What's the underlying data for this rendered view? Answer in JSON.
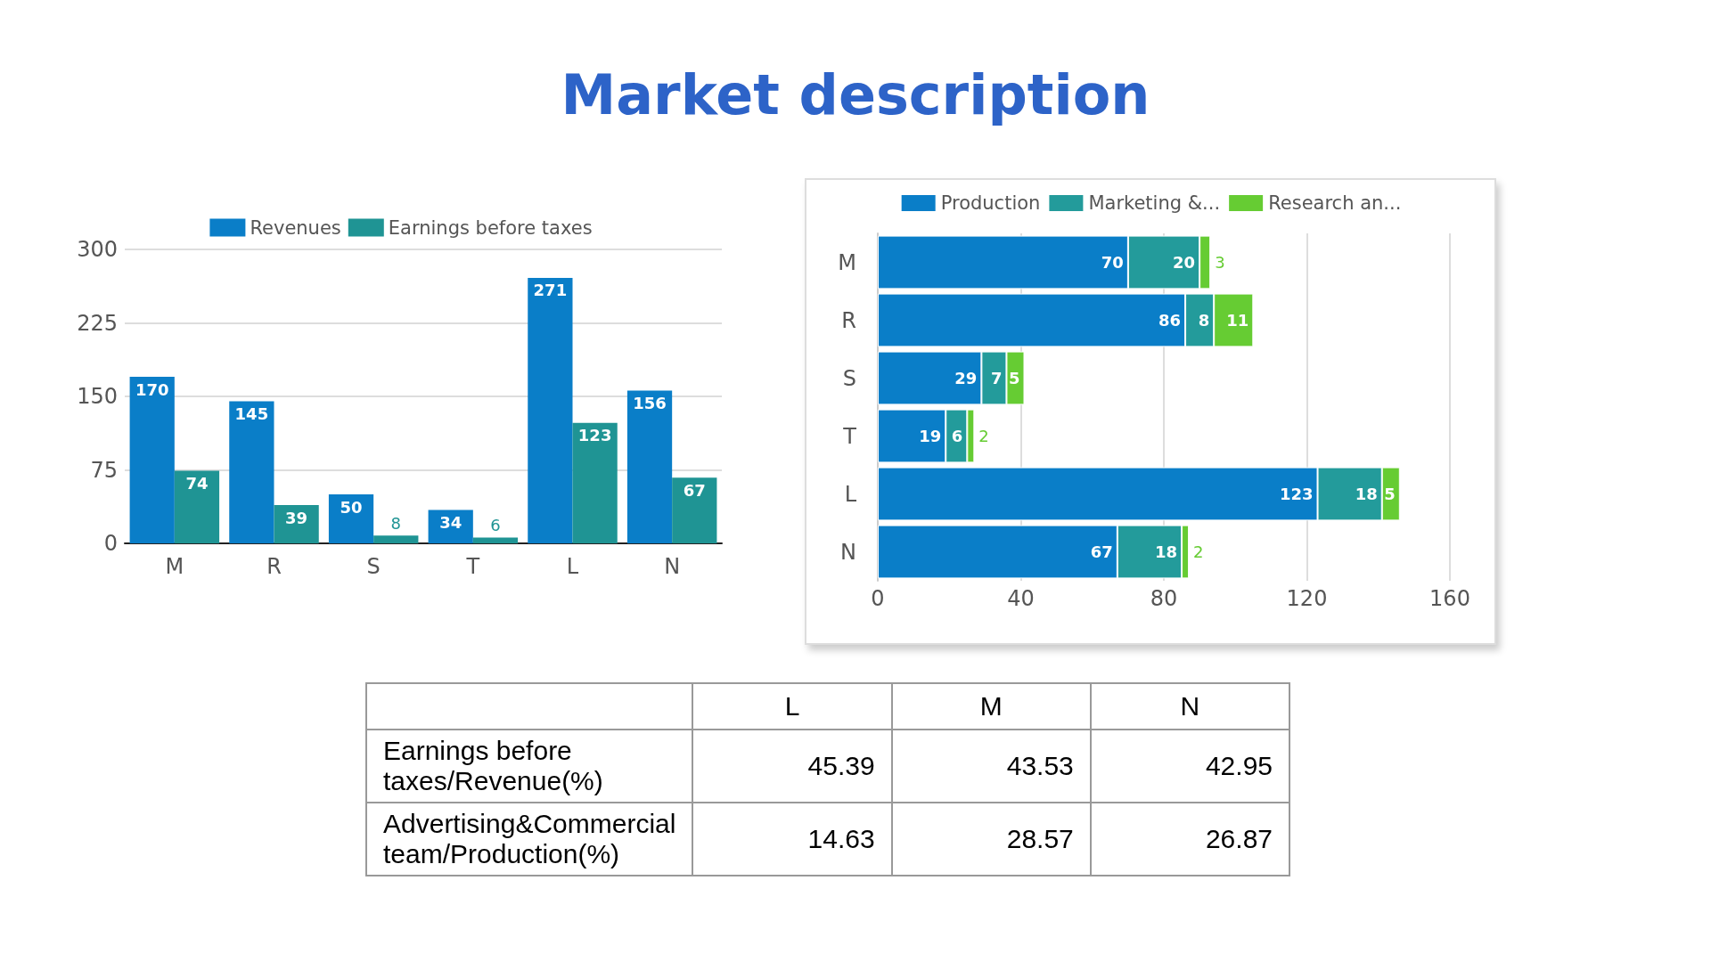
{
  "chart_data": [
    {
      "type": "bar",
      "title": "Market description",
      "categories": [
        "M",
        "R",
        "S",
        "T",
        "L",
        "N"
      ],
      "series": [
        {
          "name": "Revenues",
          "color": "#0a7ec8",
          "values": [
            170,
            145,
            50,
            34,
            271,
            156
          ]
        },
        {
          "name": "Earnings before taxes",
          "color": "#1f9494",
          "values": [
            74,
            39,
            8,
            6,
            123,
            67
          ]
        }
      ],
      "ylim": [
        0,
        300
      ],
      "yticks": [
        0,
        75,
        150,
        225,
        300
      ],
      "grid": "y",
      "legend": "top",
      "data_labels": true
    },
    {
      "type": "bar",
      "orientation": "horizontal",
      "stacked": true,
      "categories": [
        "M",
        "R",
        "S",
        "T",
        "L",
        "N"
      ],
      "series": [
        {
          "name": "Production",
          "color": "#0a7ec8",
          "values": [
            70,
            86,
            29,
            19,
            123,
            67
          ]
        },
        {
          "name": "Marketing &...",
          "color": "#239b9b",
          "values": [
            20,
            8,
            7,
            6,
            18,
            18
          ]
        },
        {
          "name": "Research an...",
          "color": "#66cc33",
          "values": [
            3,
            11,
            5,
            2,
            5,
            2
          ]
        }
      ],
      "xlim": [
        0,
        160
      ],
      "xticks": [
        0,
        40,
        80,
        120,
        160
      ],
      "grid": "x",
      "legend": "top",
      "data_labels": true
    },
    {
      "type": "other",
      "categories": [
        "L",
        "M",
        "N"
      ],
      "series": [
        {
          "name": "Earnings before taxes/Revenue(%)",
          "values": [
            45.39,
            43.53,
            42.95
          ]
        },
        {
          "name": "Advertising&Commercial team/Production(%)",
          "values": [
            14.63,
            28.57,
            26.87
          ]
        }
      ],
      "data_labels": true
    }
  ]
}
